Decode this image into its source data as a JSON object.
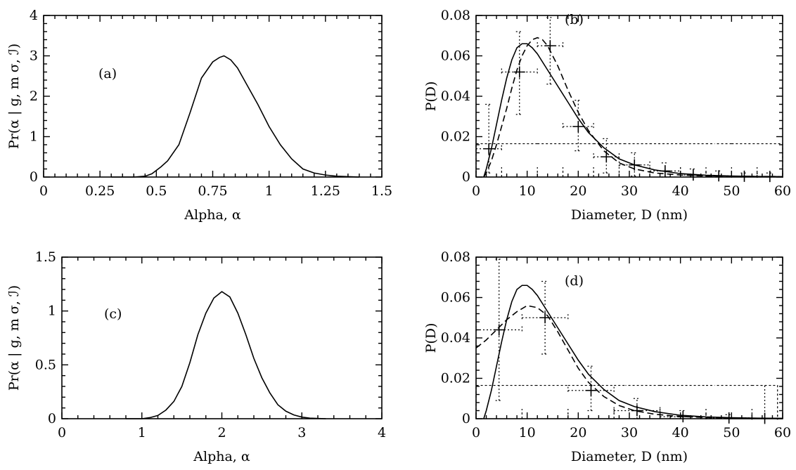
{
  "chart_data": [
    {
      "id": "a",
      "type": "line",
      "panel_label": "(a)",
      "title": "",
      "xlabel": "Alpha, α",
      "ylabel": "Pr(α | g, m σ, ℐ)",
      "xlim": [
        0,
        1.5
      ],
      "ylim": [
        0,
        4
      ],
      "xticks": [
        0,
        0.25,
        0.5,
        0.75,
        1,
        1.25,
        1.5
      ],
      "xtick_labels": [
        "0",
        "0.25",
        "0.5",
        "0.75",
        "1",
        "1.25",
        "1.5"
      ],
      "yticks": [
        0,
        1,
        2,
        3,
        4
      ],
      "ytick_labels": [
        "0",
        "1",
        "2",
        "3",
        "4"
      ],
      "grid": false,
      "series": [
        {
          "style": "solid",
          "x": [
            0.3,
            0.4,
            0.45,
            0.48,
            0.52,
            0.55,
            0.6,
            0.65,
            0.7,
            0.75,
            0.78,
            0.8,
            0.83,
            0.86,
            0.9,
            0.95,
            1.0,
            1.05,
            1.1,
            1.15,
            1.2,
            1.25,
            1.3,
            1.4
          ],
          "y": [
            0,
            0,
            0.02,
            0.08,
            0.25,
            0.4,
            0.8,
            1.6,
            2.45,
            2.85,
            2.96,
            3.0,
            2.9,
            2.7,
            2.3,
            1.8,
            1.25,
            0.8,
            0.45,
            0.2,
            0.1,
            0.05,
            0.02,
            0
          ]
        }
      ]
    },
    {
      "id": "b",
      "type": "line",
      "panel_label": "(b)",
      "title": "",
      "xlabel": "Diameter, D (nm)",
      "ylabel": "P(D)",
      "xlim": [
        0,
        60
      ],
      "ylim": [
        0,
        0.08
      ],
      "xticks": [
        0,
        10,
        20,
        30,
        40,
        50,
        60
      ],
      "xtick_labels": [
        "0",
        "10",
        "20",
        "30",
        "40",
        "50",
        "60"
      ],
      "yticks": [
        0,
        0.02,
        0.04,
        0.06,
        0.08
      ],
      "ytick_labels": [
        "0",
        "0.02",
        "0.04",
        "0.06",
        "0.08"
      ],
      "grid": false,
      "series": [
        {
          "style": "solid",
          "x": [
            1.5,
            2,
            3,
            4,
            5,
            6,
            7,
            8,
            9,
            10,
            11,
            12,
            14,
            16,
            18,
            20,
            22,
            25,
            28,
            31,
            35,
            40,
            45,
            50,
            55,
            60
          ],
          "y": [
            0,
            0.004,
            0.014,
            0.026,
            0.038,
            0.049,
            0.058,
            0.064,
            0.066,
            0.066,
            0.064,
            0.061,
            0.053,
            0.045,
            0.037,
            0.029,
            0.022,
            0.0145,
            0.009,
            0.006,
            0.0035,
            0.0017,
            0.0009,
            0.0005,
            0.0003,
            0.0002
          ]
        },
        {
          "style": "dashed",
          "x": [
            1.5,
            2,
            3,
            4,
            5,
            6,
            7,
            8,
            9,
            10,
            11,
            12,
            13,
            14,
            16,
            18,
            20,
            22,
            25,
            28,
            31,
            35,
            40,
            45,
            50,
            55,
            60
          ],
          "y": [
            0,
            0.002,
            0.008,
            0.016,
            0.025,
            0.034,
            0.044,
            0.053,
            0.06,
            0.065,
            0.068,
            0.069,
            0.068,
            0.065,
            0.055,
            0.043,
            0.032,
            0.023,
            0.013,
            0.007,
            0.004,
            0.002,
            0.001,
            0.0005,
            0.0003,
            0.0002,
            0.0001
          ]
        }
      ],
      "histogram": {
        "edges": [
          0,
          5,
          12,
          17,
          23,
          28,
          34,
          40,
          45,
          50,
          55,
          60
        ],
        "values": [
          0.0165,
          0.0165,
          0.0165,
          0.0165,
          0.0165,
          0.0165,
          0.0165,
          0.0165,
          0.0165,
          0.0165,
          0.0165
        ]
      },
      "error_points": [
        {
          "x": 2.5,
          "y": 0.014,
          "xerr": [
            0,
            5
          ],
          "yerr": [
            0.002,
            0.036
          ]
        },
        {
          "x": 8.5,
          "y": 0.052,
          "xerr": [
            5,
            12
          ],
          "yerr": [
            0.031,
            0.072
          ]
        },
        {
          "x": 14.5,
          "y": 0.065,
          "xerr": [
            12,
            17
          ],
          "yerr": [
            0.046,
            0.079
          ]
        },
        {
          "x": 20,
          "y": 0.025,
          "xerr": [
            17,
            23
          ],
          "yerr": [
            0.013,
            0.038
          ]
        },
        {
          "x": 25.5,
          "y": 0.01,
          "xerr": [
            23,
            28
          ],
          "yerr": [
            0.002,
            0.019
          ]
        },
        {
          "x": 31,
          "y": 0.006,
          "xerr": [
            28,
            34
          ],
          "yerr": [
            0.0005,
            0.012
          ]
        },
        {
          "x": 37,
          "y": 0.003,
          "xerr": [
            34,
            40
          ],
          "yerr": [
            0,
            0.007
          ]
        },
        {
          "x": 42.5,
          "y": 0.001,
          "xerr": [
            40,
            45
          ],
          "yerr": [
            0,
            0.004
          ]
        },
        {
          "x": 47.5,
          "y": 0.0006,
          "xerr": [
            45,
            50
          ],
          "yerr": [
            0,
            0.003
          ]
        },
        {
          "x": 52.5,
          "y": 0.0004,
          "xerr": [
            50,
            55
          ],
          "yerr": [
            0,
            0.002
          ]
        },
        {
          "x": 57.5,
          "y": 0.0003,
          "xerr": [
            55,
            60
          ],
          "yerr": [
            0,
            0.002
          ]
        }
      ]
    },
    {
      "id": "c",
      "type": "line",
      "panel_label": "(c)",
      "title": "",
      "xlabel": "Alpha, α",
      "ylabel": "Pr(α | g, m σ, ℐ)",
      "xlim": [
        0,
        4
      ],
      "ylim": [
        0,
        1.5
      ],
      "xticks": [
        0,
        1,
        2,
        3,
        4
      ],
      "xtick_labels": [
        "0",
        "1",
        "2",
        "3",
        "4"
      ],
      "yticks": [
        0,
        0.5,
        1,
        1.5
      ],
      "ytick_labels": [
        "0",
        "0.5",
        "1",
        "1.5"
      ],
      "grid": false,
      "series": [
        {
          "style": "solid",
          "x": [
            0.8,
            1.0,
            1.1,
            1.2,
            1.3,
            1.4,
            1.5,
            1.6,
            1.7,
            1.8,
            1.9,
            2.0,
            2.1,
            2.2,
            2.3,
            2.4,
            2.5,
            2.6,
            2.7,
            2.8,
            2.9,
            3.0,
            3.1,
            3.3
          ],
          "y": [
            0,
            0,
            0.01,
            0.03,
            0.08,
            0.16,
            0.3,
            0.52,
            0.78,
            0.98,
            1.12,
            1.18,
            1.13,
            0.98,
            0.78,
            0.56,
            0.38,
            0.24,
            0.13,
            0.07,
            0.035,
            0.015,
            0.005,
            0
          ]
        }
      ]
    },
    {
      "id": "d",
      "type": "line",
      "panel_label": "(d)",
      "title": "",
      "xlabel": "Diameter, D (nm)",
      "ylabel": "P(D)",
      "xlim": [
        0,
        60
      ],
      "ylim": [
        0,
        0.08
      ],
      "xticks": [
        0,
        10,
        20,
        30,
        40,
        50,
        60
      ],
      "xtick_labels": [
        "0",
        "10",
        "20",
        "30",
        "40",
        "50",
        "60"
      ],
      "yticks": [
        0,
        0.02,
        0.04,
        0.06,
        0.08
      ],
      "ytick_labels": [
        "0",
        "0.02",
        "0.04",
        "0.06",
        "0.08"
      ],
      "grid": false,
      "series": [
        {
          "style": "solid",
          "x": [
            1.5,
            2,
            3,
            4,
            5,
            6,
            7,
            8,
            9,
            10,
            11,
            12,
            14,
            16,
            18,
            20,
            22,
            25,
            28,
            31,
            35,
            40,
            45,
            50,
            55,
            60
          ],
          "y": [
            0,
            0.004,
            0.014,
            0.026,
            0.038,
            0.049,
            0.058,
            0.064,
            0.066,
            0.066,
            0.064,
            0.061,
            0.053,
            0.045,
            0.037,
            0.029,
            0.022,
            0.0145,
            0.009,
            0.006,
            0.0035,
            0.0017,
            0.0009,
            0.0005,
            0.0003,
            0.0002
          ]
        },
        {
          "style": "dashed",
          "x": [
            0,
            2,
            4,
            6,
            8,
            10,
            12,
            14,
            16,
            18,
            20,
            22,
            25,
            28,
            31,
            35,
            40,
            45,
            50,
            55,
            60
          ],
          "y": [
            0.035,
            0.039,
            0.044,
            0.049,
            0.053,
            0.056,
            0.055,
            0.051,
            0.043,
            0.034,
            0.025,
            0.018,
            0.011,
            0.0065,
            0.004,
            0.0022,
            0.0011,
            0.0006,
            0.0003,
            0.0002,
            0.0001
          ]
        }
      ],
      "histogram": {
        "edges": [
          0,
          9,
          18,
          27,
          36,
          45,
          54,
          59
        ],
        "values": [
          0.0165,
          0.0165,
          0.0165,
          0.0165,
          0.0165,
          0.0165,
          0.0165
        ]
      },
      "error_points": [
        {
          "x": 4.5,
          "y": 0.044,
          "xerr": [
            0,
            9
          ],
          "yerr": [
            0.009,
            0.079
          ]
        },
        {
          "x": 13.5,
          "y": 0.05,
          "xerr": [
            9,
            18
          ],
          "yerr": [
            0.032,
            0.068
          ]
        },
        {
          "x": 22.5,
          "y": 0.014,
          "xerr": [
            18,
            27
          ],
          "yerr": [
            0.004,
            0.026
          ]
        },
        {
          "x": 31.5,
          "y": 0.004,
          "xerr": [
            27,
            36
          ],
          "yerr": [
            0,
            0.01
          ]
        },
        {
          "x": 40.5,
          "y": 0.001,
          "xerr": [
            36,
            45
          ],
          "yerr": [
            0,
            0.004
          ]
        },
        {
          "x": 49.5,
          "y": 0.0004,
          "xerr": [
            45,
            54
          ],
          "yerr": [
            0,
            0.002
          ]
        },
        {
          "x": 56.5,
          "y": 0.0002,
          "xerr": [
            54,
            59
          ],
          "yerr": [
            0,
            0.0165
          ]
        }
      ]
    }
  ]
}
